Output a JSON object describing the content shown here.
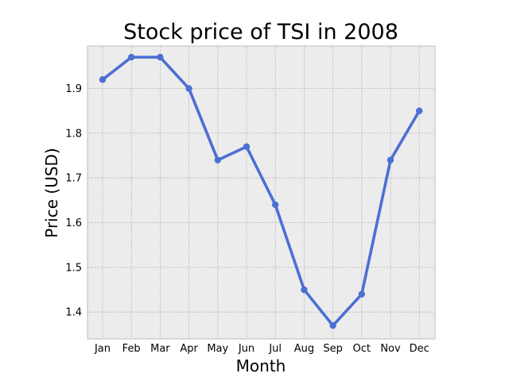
{
  "chart_data": {
    "type": "line",
    "title": "Stock price of TSI in 2008",
    "xlabel": "Month",
    "ylabel": "Price (USD)",
    "categories": [
      "Jan",
      "Feb",
      "Mar",
      "Apr",
      "May",
      "Jun",
      "Jul",
      "Aug",
      "Sep",
      "Oct",
      "Nov",
      "Dec"
    ],
    "series": [
      {
        "values": [
          1.92,
          1.97,
          1.97,
          1.9,
          1.74,
          1.77,
          1.64,
          1.45,
          1.37,
          1.44,
          1.74,
          1.85
        ]
      }
    ],
    "ylim": [
      1.34,
      1.995
    ],
    "yticks": [
      "1.4",
      "1.5",
      "1.6",
      "1.7",
      "1.8",
      "1.9"
    ],
    "grid": true,
    "legend": "none",
    "colors": {
      "line": "#4c6fd3",
      "plot_background": "#ececec",
      "grid": "#b9b9b9",
      "frame": "#bcbcbc"
    }
  }
}
